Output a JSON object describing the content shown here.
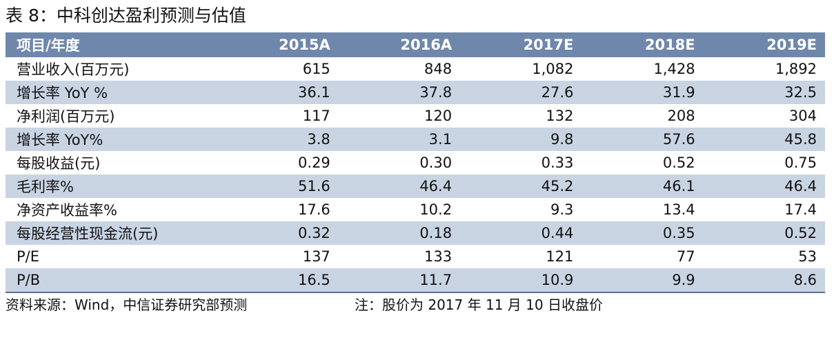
{
  "title": "表 8：中科创达盈利预测与估值",
  "table": {
    "headers": [
      "项目/年度",
      "2015A",
      "2016A",
      "2017E",
      "2018E",
      "2019E"
    ],
    "rows": [
      {
        "label": "营业收入(百万元)",
        "values": [
          "615",
          "848",
          "1,082",
          "1,428",
          "1,892"
        ]
      },
      {
        "label": "增长率 YoY %",
        "values": [
          "36.1",
          "37.8",
          "27.6",
          "31.9",
          "32.5"
        ]
      },
      {
        "label": "净利润(百万元)",
        "values": [
          "117",
          "120",
          "132",
          "208",
          "304"
        ]
      },
      {
        "label": "增长率 YoY%",
        "values": [
          "3.8",
          "3.1",
          "9.8",
          "57.6",
          "45.8"
        ]
      },
      {
        "label": "每股收益(元)",
        "values": [
          "0.29",
          "0.30",
          "0.33",
          "0.52",
          "0.75"
        ]
      },
      {
        "label": "毛利率%",
        "values": [
          "51.6",
          "46.4",
          "45.2",
          "46.1",
          "46.4"
        ]
      },
      {
        "label": "净资产收益率%",
        "values": [
          "17.6",
          "10.2",
          "9.3",
          "13.4",
          "17.4"
        ]
      },
      {
        "label": "每股经营性现金流(元)",
        "values": [
          "0.32",
          "0.18",
          "0.44",
          "0.35",
          "0.52"
        ]
      },
      {
        "label": "P/E",
        "values": [
          "137",
          "133",
          "121",
          "77",
          "53"
        ]
      },
      {
        "label": "P/B",
        "values": [
          "16.5",
          "11.7",
          "10.9",
          "9.9",
          "8.6"
        ]
      }
    ]
  },
  "footer": {
    "source": "资料来源：Wind，中信证券研究部预测",
    "note": "注：股价为 2017 年 11 月 10 日收盘价"
  },
  "colors": {
    "header_bg": "#6f87aa",
    "stripe_bg": "#c9d4e3",
    "rule": "#5a6f90"
  }
}
